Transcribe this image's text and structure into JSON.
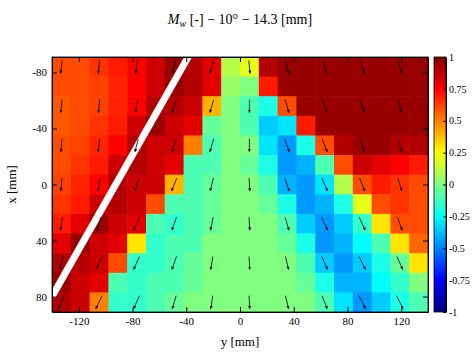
{
  "chart_data": {
    "type": "heatmap",
    "title": "Mw [-] − 10° − 14.3 [mm]",
    "x_label": "y [mm]",
    "y_label": "x [mm]",
    "xlim": [
      -140,
      140
    ],
    "xticks": [
      -120,
      -80,
      -40,
      0,
      40,
      80,
      120
    ],
    "ylim": [
      -91,
      91
    ],
    "yticks": [
      -80,
      -40,
      0,
      40,
      80
    ],
    "heatmap": {
      "x": [
        -133,
        -119,
        -105,
        -91,
        -77,
        -63,
        -49,
        -35,
        -21,
        -7,
        7,
        21,
        35,
        49,
        63,
        77,
        91,
        105,
        119,
        133
      ],
      "y": [
        -84,
        -70,
        -56,
        -42,
        -28,
        -14,
        0,
        14,
        28,
        42,
        56,
        70,
        84
      ],
      "z": [
        [
          0.6,
          0.6,
          0.65,
          0.7,
          0.75,
          0.85,
          0.95,
          0.9,
          0.8,
          0.1,
          0.2,
          0.9,
          0.95,
          0.95,
          0.95,
          0.95,
          0.95,
          0.95,
          0.95,
          0.95
        ],
        [
          0.6,
          0.6,
          0.62,
          0.68,
          0.75,
          0.85,
          0.95,
          0.9,
          0.8,
          0.05,
          0.0,
          0.7,
          0.95,
          0.95,
          0.95,
          0.95,
          0.95,
          0.95,
          0.95,
          0.95
        ],
        [
          0.58,
          0.6,
          0.62,
          0.68,
          0.75,
          0.9,
          0.9,
          0.85,
          0.4,
          0.0,
          -0.1,
          -0.2,
          0.6,
          0.95,
          0.95,
          0.95,
          0.95,
          0.95,
          0.95,
          0.95
        ],
        [
          0.58,
          0.6,
          0.65,
          0.7,
          0.85,
          0.95,
          0.85,
          0.8,
          -0.05,
          0.0,
          -0.1,
          -0.35,
          -0.3,
          0.7,
          0.95,
          0.95,
          0.95,
          0.95,
          0.95,
          0.95
        ],
        [
          0.6,
          0.62,
          0.68,
          0.75,
          0.9,
          0.85,
          0.85,
          0.5,
          -0.1,
          0.0,
          0.0,
          -0.3,
          -0.45,
          -0.2,
          0.6,
          0.9,
          0.95,
          0.95,
          0.9,
          0.9
        ],
        [
          0.6,
          0.65,
          0.7,
          0.85,
          0.9,
          0.85,
          0.8,
          -0.1,
          -0.1,
          0.0,
          -0.05,
          -0.2,
          -0.45,
          -0.4,
          -0.1,
          0.6,
          0.85,
          0.8,
          0.75,
          0.7
        ],
        [
          0.62,
          0.68,
          0.75,
          0.9,
          0.85,
          0.85,
          0.4,
          -0.1,
          -0.05,
          0.0,
          0.0,
          -0.1,
          -0.4,
          -0.45,
          -0.3,
          0.1,
          0.6,
          0.7,
          0.65,
          0.6
        ],
        [
          0.65,
          0.7,
          0.85,
          0.9,
          0.85,
          0.6,
          -0.1,
          -0.1,
          -0.05,
          0.0,
          0.0,
          -0.05,
          -0.2,
          -0.45,
          -0.4,
          -0.2,
          0.2,
          0.6,
          0.65,
          0.6
        ],
        [
          0.7,
          0.8,
          0.95,
          0.85,
          0.8,
          -0.1,
          -0.15,
          -0.1,
          -0.05,
          0.0,
          0.0,
          0.0,
          -0.1,
          -0.35,
          -0.45,
          -0.35,
          -0.15,
          0.3,
          0.6,
          0.6
        ],
        [
          0.8,
          0.95,
          0.85,
          0.8,
          0.3,
          -0.15,
          -0.1,
          -0.1,
          0.0,
          0.0,
          0.0,
          0.0,
          -0.05,
          -0.2,
          -0.45,
          -0.4,
          -0.25,
          -0.1,
          0.3,
          0.55
        ],
        [
          0.9,
          0.9,
          0.85,
          0.6,
          -0.15,
          -0.15,
          -0.1,
          -0.05,
          0.0,
          0.0,
          0.0,
          0.0,
          0.0,
          -0.1,
          -0.35,
          -0.45,
          -0.35,
          -0.2,
          -0.05,
          0.3
        ],
        [
          0.95,
          0.85,
          0.8,
          -0.1,
          -0.15,
          -0.1,
          -0.1,
          -0.05,
          0.0,
          0.0,
          0.0,
          0.0,
          0.0,
          -0.05,
          -0.2,
          -0.4,
          -0.4,
          -0.25,
          -0.15,
          0.0
        ],
        [
          0.9,
          0.85,
          0.5,
          -0.15,
          -0.15,
          -0.1,
          -0.05,
          0.0,
          0.0,
          0.0,
          0.0,
          0.0,
          0.0,
          0.0,
          -0.1,
          -0.3,
          -0.45,
          -0.35,
          -0.2,
          -0.1
        ]
      ]
    },
    "colorbar": {
      "range": [
        -1,
        1
      ],
      "ticks": [
        -1,
        -0.75,
        -0.5,
        -0.25,
        0,
        0.25,
        0.5,
        0.75,
        1
      ]
    },
    "vectors": {
      "x": [
        -133,
        -105,
        -77,
        -49,
        -21,
        7,
        35,
        63,
        91,
        119
      ],
      "y": [
        -84,
        -56,
        -28,
        0,
        28,
        56,
        84
      ],
      "u": [
        [
          -0.1,
          -0.1,
          -0.15,
          -0.2,
          -0.3,
          0.1,
          0.3,
          0.3,
          0.3,
          0.3
        ],
        [
          -0.1,
          -0.1,
          -0.2,
          -0.3,
          -0.3,
          0.0,
          0.3,
          0.35,
          0.3,
          0.3
        ],
        [
          -0.1,
          -0.15,
          -0.25,
          -0.35,
          -0.3,
          0.0,
          0.35,
          0.4,
          0.35,
          0.3
        ],
        [
          -0.1,
          -0.2,
          -0.35,
          -0.4,
          -0.25,
          0.05,
          0.35,
          0.45,
          0.4,
          0.3
        ],
        [
          -0.15,
          -0.3,
          -0.45,
          -0.35,
          -0.2,
          0.05,
          0.3,
          0.45,
          0.45,
          0.35
        ],
        [
          -0.25,
          -0.45,
          -0.45,
          -0.35,
          -0.15,
          0.05,
          0.25,
          0.45,
          0.5,
          0.45
        ],
        [
          -0.45,
          -0.5,
          -0.45,
          -0.3,
          -0.15,
          0.05,
          0.25,
          0.4,
          0.5,
          0.5
        ]
      ],
      "v": [
        [
          1,
          1,
          1,
          1,
          1,
          1,
          1,
          1,
          1,
          1
        ],
        [
          1,
          1,
          1,
          1,
          1,
          1,
          1,
          1,
          1,
          1
        ],
        [
          1,
          1,
          1,
          1,
          1,
          1,
          1,
          1,
          1,
          1
        ],
        [
          1,
          1,
          1,
          1,
          1,
          1,
          1,
          1,
          1,
          1
        ],
        [
          1,
          1,
          1,
          1,
          1,
          1,
          1,
          1,
          1,
          1
        ],
        [
          1,
          1,
          1,
          1,
          1,
          1,
          1,
          1,
          1,
          1
        ],
        [
          1,
          1,
          1,
          1,
          1,
          1,
          1,
          1,
          1,
          1
        ]
      ]
    },
    "wedge": {
      "x": [
        -38,
        -140
      ],
      "y": [
        -92,
        80
      ]
    }
  }
}
